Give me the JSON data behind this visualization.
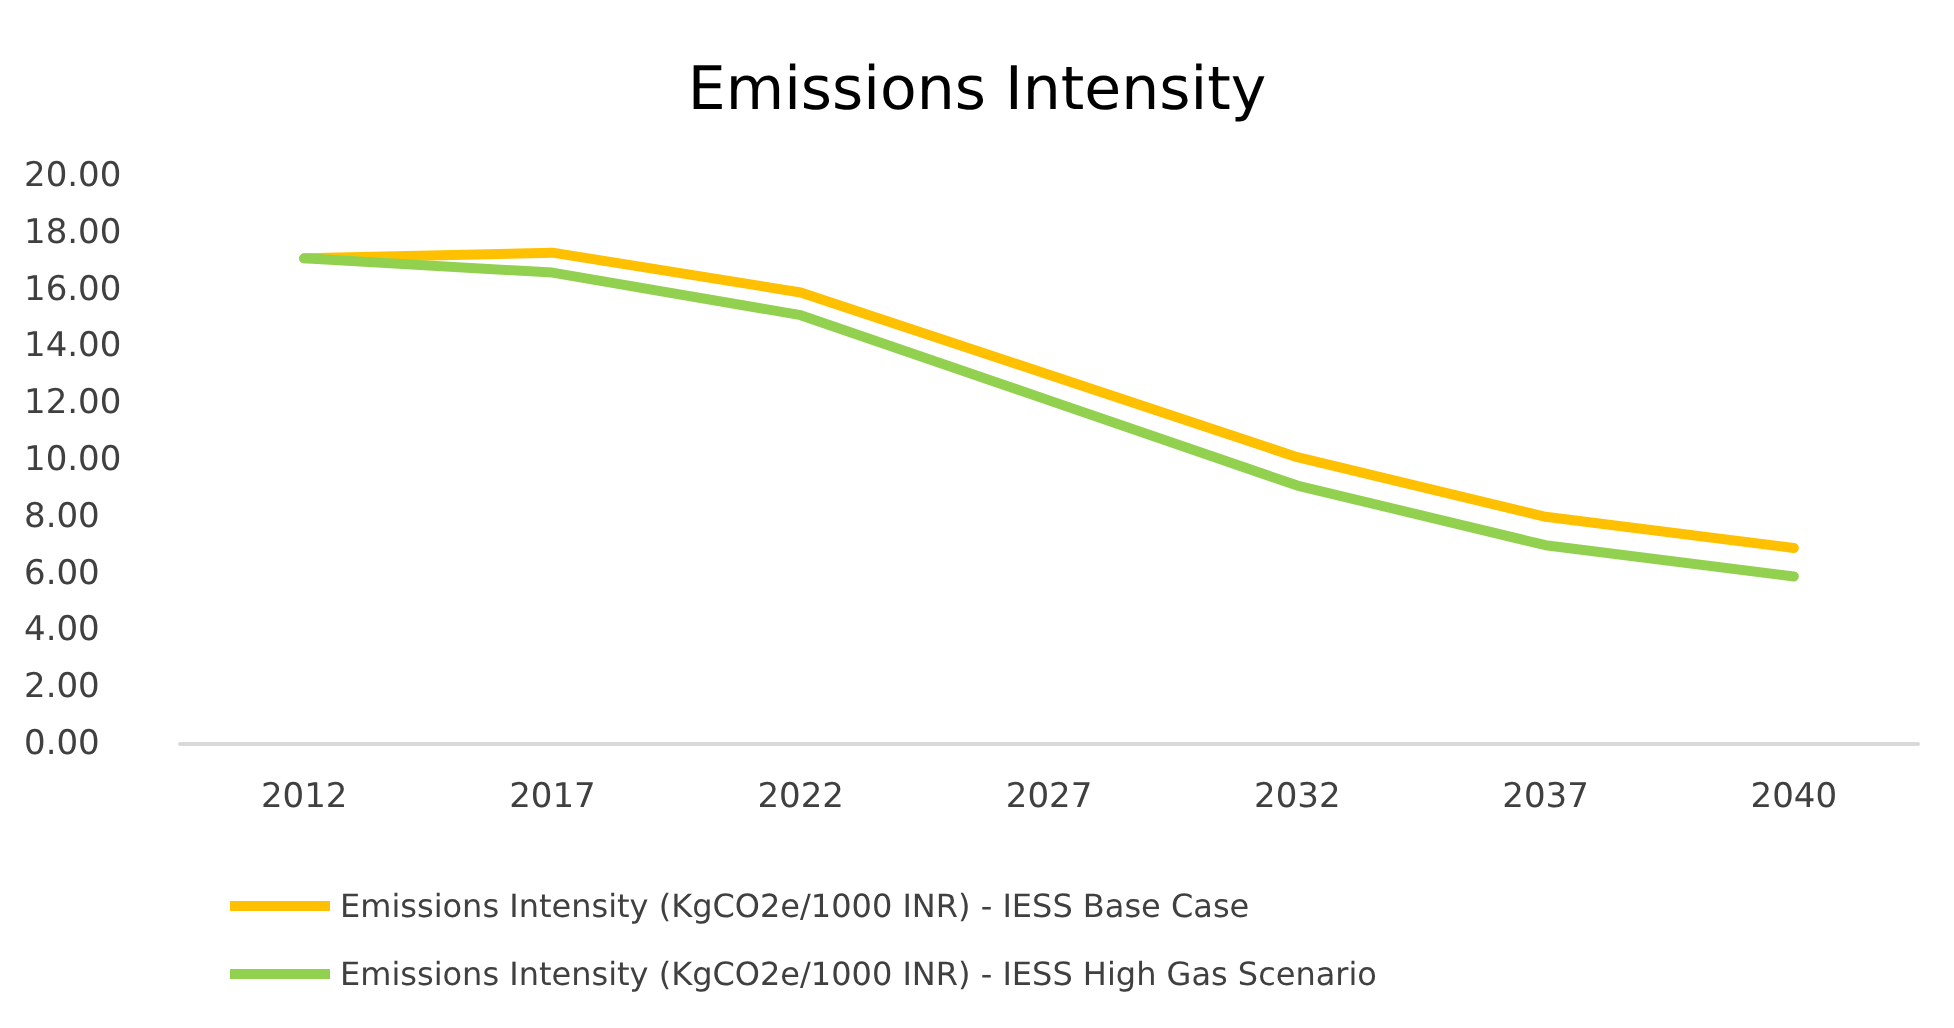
{
  "chart_data": {
    "type": "line",
    "title": "Emissions Intensity",
    "categories": [
      "2012",
      "2017",
      "2022",
      "2027",
      "2032",
      "2037",
      "2040"
    ],
    "series": [
      {
        "name": "Emissions Intensity (KgCO2e/1000 INR) - IESS Base Case",
        "color": "#ffc000",
        "values": [
          17.1,
          17.3,
          15.9,
          13.0,
          10.1,
          8.0,
          6.9
        ]
      },
      {
        "name": "Emissions Intensity (KgCO2e/1000 INR) - IESS High Gas Scenario",
        "color": "#92d050",
        "values": [
          17.1,
          16.6,
          15.1,
          12.1,
          9.1,
          7.0,
          5.9
        ]
      }
    ],
    "ylim": [
      0,
      20
    ],
    "yticks": [
      {
        "value": 0,
        "label": "0.00"
      },
      {
        "value": 2,
        "label": "2.00"
      },
      {
        "value": 4,
        "label": "4.00"
      },
      {
        "value": 6,
        "label": "6.00"
      },
      {
        "value": 8,
        "label": "8.00"
      },
      {
        "value": 10,
        "label": "10.00"
      },
      {
        "value": 12,
        "label": "12.00"
      },
      {
        "value": 14,
        "label": "14.00"
      },
      {
        "value": 16,
        "label": "16.00"
      },
      {
        "value": 18,
        "label": "18.00"
      },
      {
        "value": 20,
        "label": "20.00"
      }
    ],
    "grid": false,
    "legend": "bottom",
    "marker": "none",
    "line_style": "solid"
  }
}
